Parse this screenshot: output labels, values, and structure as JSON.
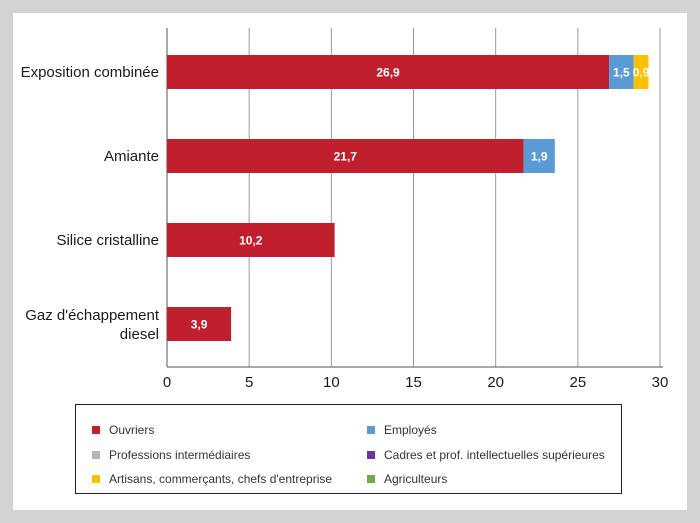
{
  "chart_data": {
    "type": "bar",
    "orientation": "horizontal",
    "stacked": true,
    "categories": [
      "Exposition combinée",
      "Amiante",
      "Silice cristalline",
      "Gaz d'échappement diesel"
    ],
    "series": [
      {
        "name": "Ouvriers",
        "color": "#c0202e",
        "values": [
          26.9,
          21.7,
          10.2,
          3.9
        ],
        "labels": [
          "26,9",
          "21,7",
          "10,2",
          "3,9"
        ]
      },
      {
        "name": "Employés",
        "color": "#5b9bd5",
        "values": [
          1.5,
          1.9,
          0,
          0
        ],
        "labels": [
          "1,5",
          "1,9",
          "",
          ""
        ]
      },
      {
        "name": "Professions intermédiaires",
        "color": "#b4b4b4",
        "values": [
          0,
          0,
          0,
          0
        ],
        "labels": [
          "",
          "",
          "",
          ""
        ]
      },
      {
        "name": "Cadres et prof. intellectuelles supérieures",
        "color": "#7030a0",
        "values": [
          0,
          0,
          0,
          0
        ],
        "labels": [
          "",
          "",
          "",
          ""
        ]
      },
      {
        "name": "Artisans, commerçants, chefs d'entreprise",
        "color": "#ffc000",
        "values": [
          0.9,
          0,
          0,
          0
        ],
        "labels": [
          "0,9",
          "",
          "",
          ""
        ]
      },
      {
        "name": "Agriculteurs",
        "color": "#70ad47",
        "values": [
          0,
          0,
          0,
          0
        ],
        "labels": [
          "",
          "",
          "",
          ""
        ]
      }
    ],
    "xlim": [
      0,
      30
    ],
    "ticks": [
      "0",
      "5",
      "10",
      "15",
      "20",
      "25",
      "30"
    ],
    "grid": true,
    "legend_position": "bottom"
  }
}
